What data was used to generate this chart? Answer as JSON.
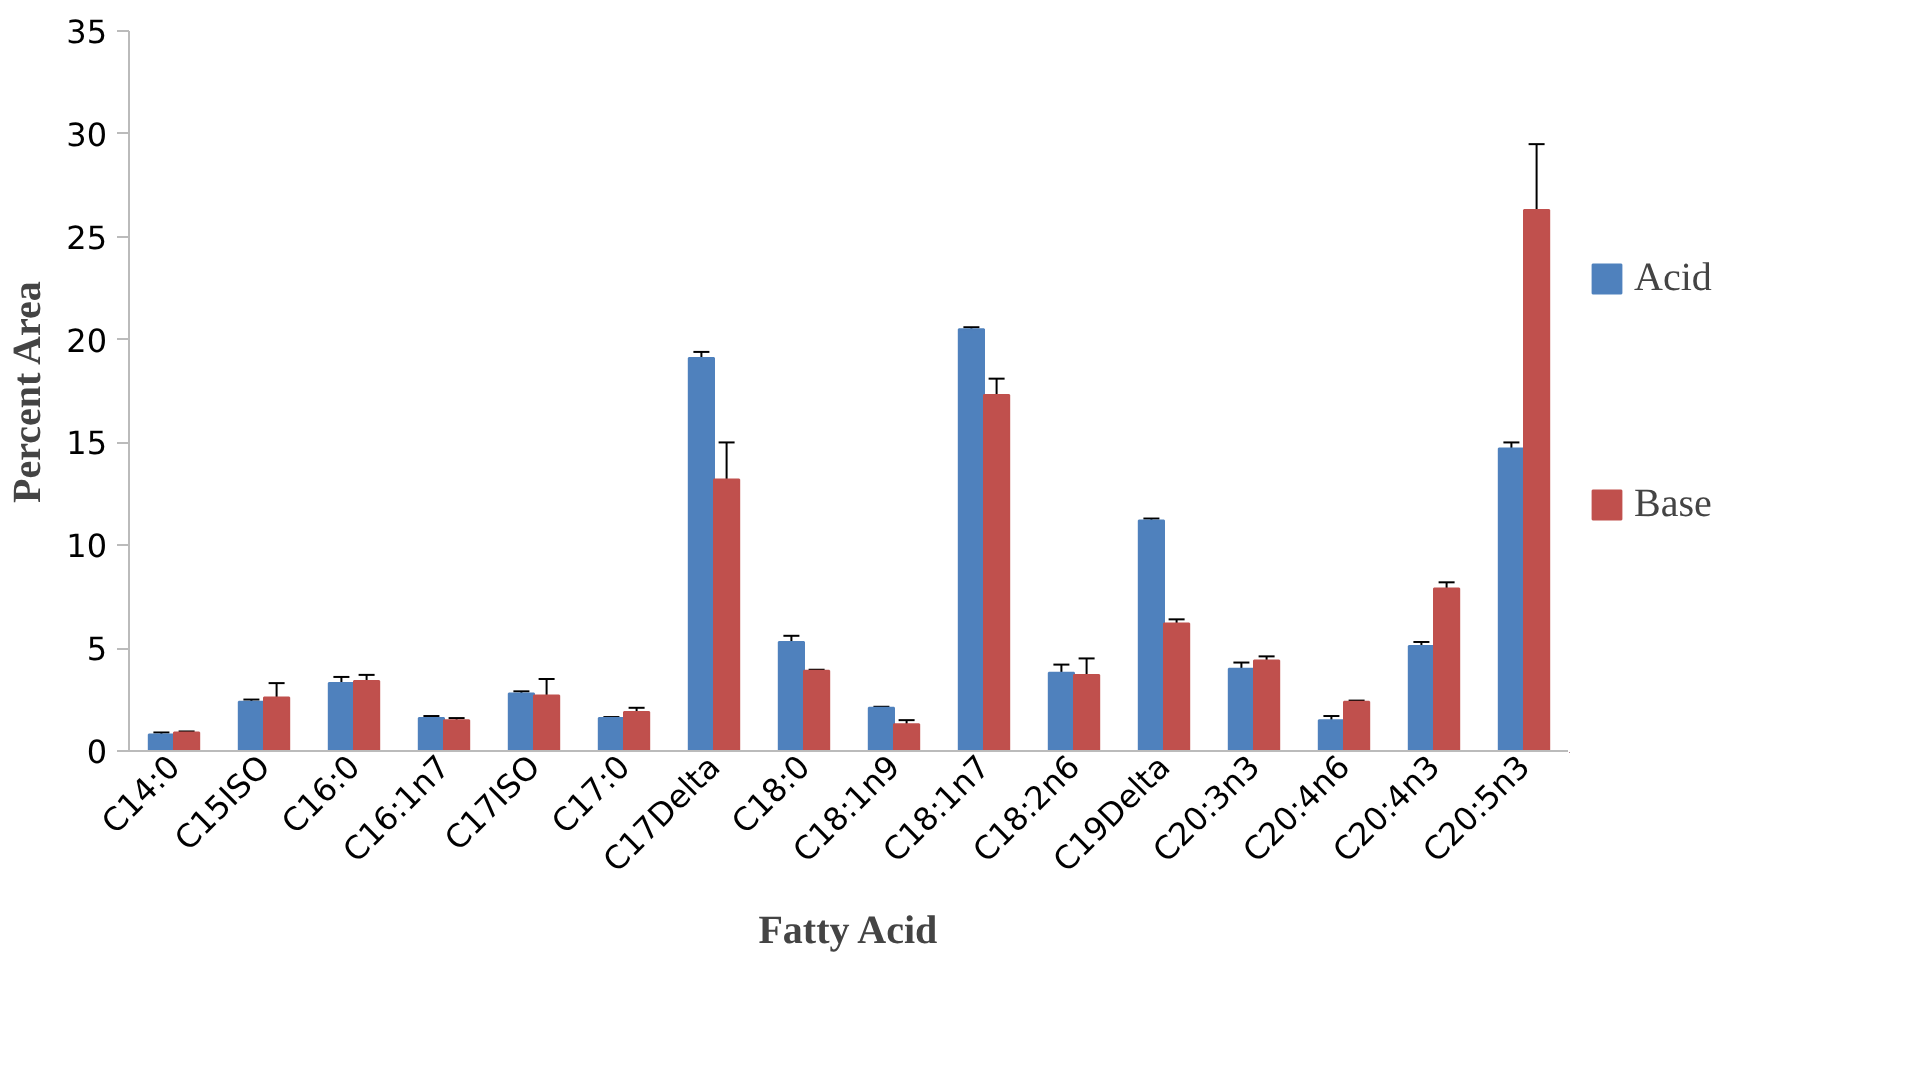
{
  "chart_data": {
    "type": "bar",
    "xlabel": "Fatty Acid",
    "ylabel": "Percent Area",
    "categories": [
      "C14:0",
      "C15ISO",
      "C16:0",
      "C16:1n7",
      "C17ISO",
      "C17:0",
      "C17Delta",
      "C18:0",
      "C18:1n9",
      "C18:1n7",
      "C18:2n6",
      "C19Delta",
      "C20:3n3",
      "C20:4n6",
      "C20:4n3",
      "C20:5n3"
    ],
    "series": [
      {
        "name": "Acid",
        "color": "#4f81bd",
        "values": [
          0.8,
          2.4,
          3.3,
          1.6,
          2.8,
          1.6,
          19.1,
          5.3,
          2.1,
          20.5,
          3.8,
          11.2,
          4.0,
          1.5,
          5.1,
          14.7
        ],
        "errors": [
          0.1,
          0.1,
          0.3,
          0.1,
          0.1,
          0.05,
          0.3,
          0.3,
          0.05,
          0.1,
          0.4,
          0.1,
          0.3,
          0.2,
          0.2,
          0.3
        ]
      },
      {
        "name": "Base",
        "color": "#c0504d",
        "values": [
          0.9,
          2.6,
          3.4,
          1.5,
          2.7,
          1.9,
          13.2,
          3.9,
          1.3,
          17.3,
          3.7,
          6.2,
          4.4,
          2.4,
          7.9,
          26.3
        ],
        "errors": [
          0.05,
          0.7,
          0.3,
          0.1,
          0.8,
          0.2,
          1.8,
          0.05,
          0.2,
          0.8,
          0.8,
          0.2,
          0.2,
          0.05,
          0.3,
          3.2
        ]
      }
    ],
    "ylim": [
      0,
      35
    ],
    "yticks": [
      0,
      5,
      10,
      15,
      20,
      25,
      30,
      35
    ],
    "grid": false,
    "legend": "right"
  }
}
